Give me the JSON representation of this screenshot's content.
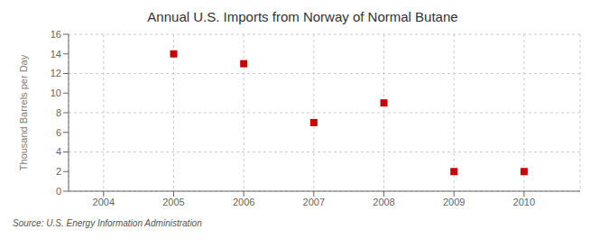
{
  "chart_data": {
    "type": "scatter",
    "title": "Annual U.S. Imports from Norway of Normal Butane",
    "ylabel": "Thousand Barrels per Day",
    "annotations": [
      "Source: U.S. Energy Information Administration"
    ],
    "x": [
      2005,
      2006,
      2007,
      2008,
      2009,
      2010
    ],
    "values": [
      14,
      13,
      7,
      9,
      2,
      2
    ],
    "color": "#cc0000",
    "marker": "square",
    "xlim": [
      2003.5,
      2010.8
    ],
    "xticks": [
      2004,
      2005,
      2006,
      2007,
      2008,
      2009,
      2010
    ],
    "ylim": [
      0,
      16
    ],
    "yticks": [
      0,
      2,
      4,
      6,
      8,
      10,
      12,
      14,
      16
    ],
    "grid": true
  }
}
